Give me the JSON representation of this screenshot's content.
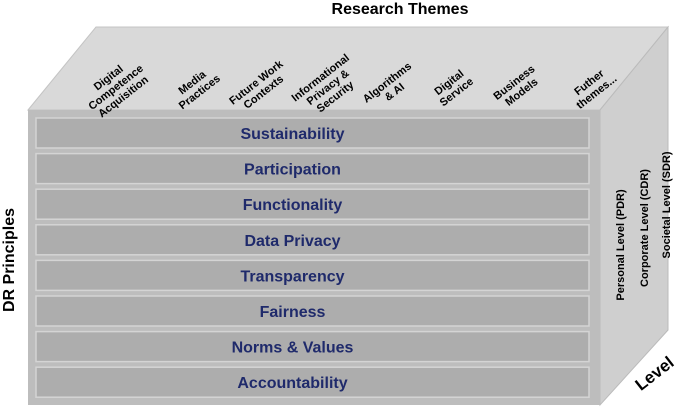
{
  "top_title": "Research Themes",
  "left_title": "DR Principles",
  "level_title": "Level",
  "research_themes": [
    [
      "Digital",
      "Competence",
      "Acquisition"
    ],
    [
      "Media",
      "Practices"
    ],
    [
      "Future Work",
      "Contexts"
    ],
    [
      "Informational",
      "Privacy &",
      "Security"
    ],
    [
      "Algorithms",
      "& AI"
    ],
    [
      "Digital",
      "Service"
    ],
    [
      "Business",
      "Models"
    ],
    [
      "Futher",
      "themes..."
    ]
  ],
  "principles": [
    "Sustainability",
    "Participation",
    "Functionality",
    "Data Privacy",
    "Transparency",
    "Fairness",
    "Norms & Values",
    "Accountability"
  ],
  "levels": [
    "Personal Level (PDR)",
    "Corporate Level (CDR)",
    "Societal Level (SDR)"
  ],
  "colors": {
    "front_face": "#bdbdbd",
    "row_fill": "#adadad",
    "row_border": "#d4d4d4",
    "top_face": "#d9d9d9",
    "side_face": "#cfcfcf",
    "principle_text": "#1f2a6b",
    "label_text": "#000000"
  }
}
